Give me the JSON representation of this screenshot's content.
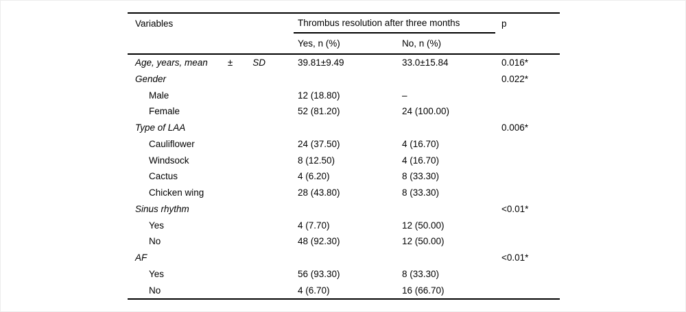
{
  "table": {
    "header": {
      "variables": "Variables",
      "span_title": "Thrombus resolution after three months",
      "p": "p",
      "sub_yes": "Yes, n (%)",
      "sub_no": "No, n (%)"
    },
    "rows": [
      {
        "type": "category",
        "label_parts": [
          "Age, years, mean",
          "±",
          "SD"
        ],
        "yes": "39.81±9.49",
        "no": "33.0±15.84",
        "p": "0.016*"
      },
      {
        "type": "category",
        "label": "Gender",
        "yes": "",
        "no": "",
        "p": "0.022*"
      },
      {
        "type": "item",
        "label": "Male",
        "yes": "12 (18.80)",
        "no": "–",
        "p": ""
      },
      {
        "type": "item",
        "label": "Female",
        "yes": "52 (81.20)",
        "no": "24 (100.00)",
        "p": ""
      },
      {
        "type": "category",
        "label": "Type of LAA",
        "yes": "",
        "no": "",
        "p": "0.006*"
      },
      {
        "type": "item",
        "label": "Cauliflower",
        "yes": "24 (37.50)",
        "no": "4 (16.70)",
        "p": ""
      },
      {
        "type": "item",
        "label": "Windsock",
        "yes": "8 (12.50)",
        "no": "4 (16.70)",
        "p": ""
      },
      {
        "type": "item",
        "label": "Cactus",
        "yes": "4 (6.20)",
        "no": "8 (33.30)",
        "p": ""
      },
      {
        "type": "item",
        "label": "Chicken wing",
        "yes": "28 (43.80)",
        "no": "8 (33.30)",
        "p": ""
      },
      {
        "type": "category",
        "label": "Sinus rhythm",
        "yes": "",
        "no": "",
        "p": "<0.01*"
      },
      {
        "type": "item",
        "label": "Yes",
        "yes": "4 (7.70)",
        "no": "12 (50.00)",
        "p": ""
      },
      {
        "type": "item",
        "label": "No",
        "yes": "48 (92.30)",
        "no": "12 (50.00)",
        "p": ""
      },
      {
        "type": "category",
        "label": "AF",
        "yes": "",
        "no": "",
        "p": "<0.01*"
      },
      {
        "type": "item",
        "label": "Yes",
        "yes": "56 (93.30)",
        "no": "8 (33.30)",
        "p": ""
      },
      {
        "type": "item",
        "label": "No",
        "yes": "4 (6.70)",
        "no": "16 (66.70)",
        "p": ""
      }
    ]
  },
  "colors": {
    "text": "#000000",
    "rule": "#000000",
    "background": "#ffffff",
    "frame": "#ececec"
  }
}
